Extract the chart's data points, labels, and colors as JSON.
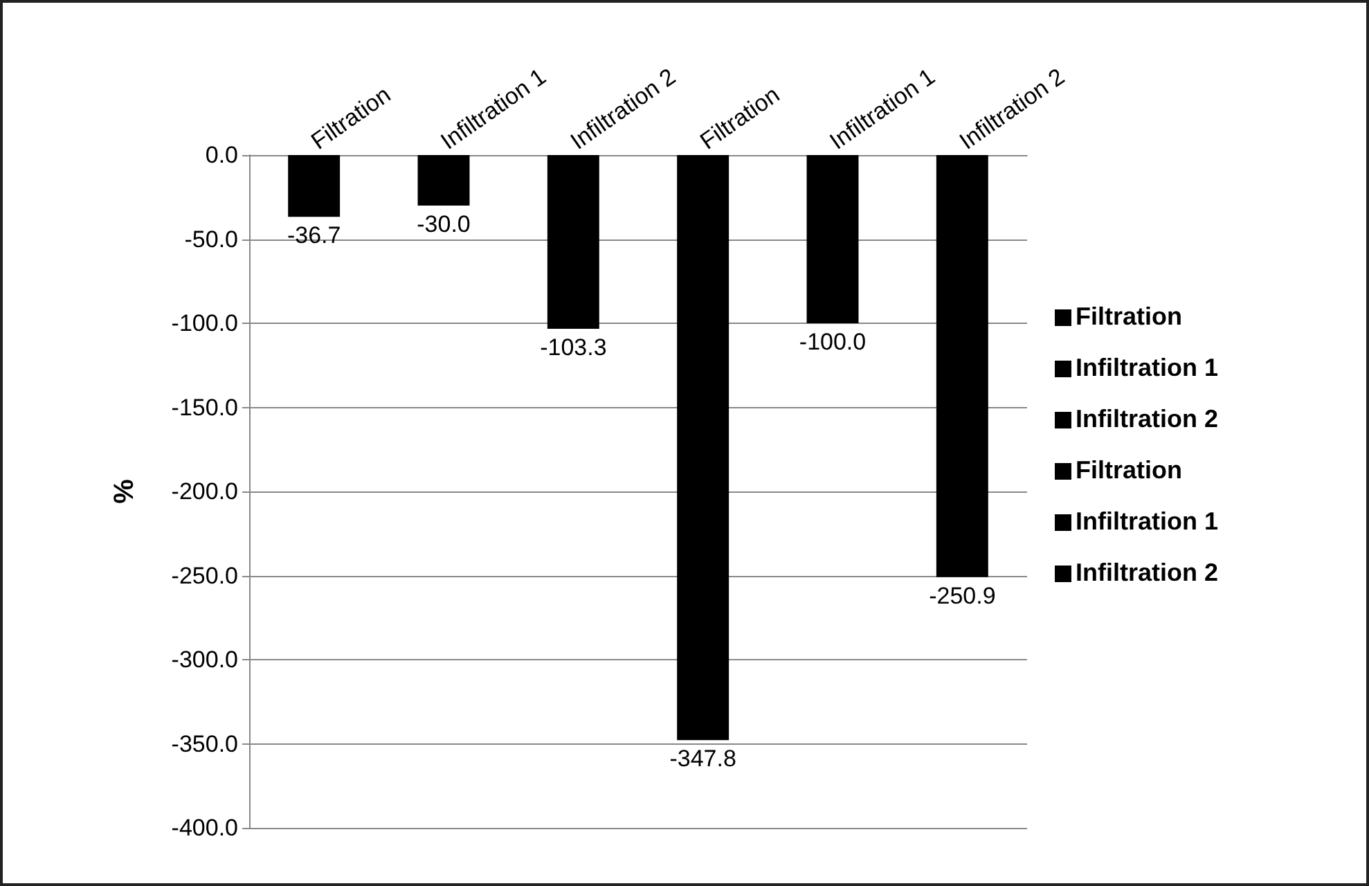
{
  "chart_data": {
    "type": "bar",
    "ylabel": "%",
    "categories": [
      "Filtration",
      "Infiltration 1",
      "Infiltration 2",
      "Filtration",
      "Infiltration 1",
      "Infiltration 2"
    ],
    "series": [
      {
        "name": "Filtration",
        "color": "#000000",
        "values": [
          -36.7,
          null,
          null,
          null,
          null,
          null
        ],
        "value_labels": [
          "-36.7",
          null,
          null,
          null,
          null,
          null
        ]
      },
      {
        "name": "Infiltration 1",
        "color": "#000000",
        "values": [
          null,
          -30.0,
          null,
          null,
          null,
          null
        ],
        "value_labels": [
          null,
          "-30.0",
          null,
          null,
          null,
          null
        ]
      },
      {
        "name": "Infiltration 2",
        "color": "#000000",
        "values": [
          null,
          null,
          -103.3,
          null,
          null,
          null
        ],
        "value_labels": [
          null,
          null,
          "-103.3",
          null,
          null,
          null
        ]
      },
      {
        "name": "Filtration",
        "color": "#000000",
        "values": [
          null,
          null,
          null,
          -347.8,
          null,
          null
        ],
        "value_labels": [
          null,
          null,
          null,
          "-347.8",
          null,
          null
        ]
      },
      {
        "name": "Infiltration 1",
        "color": "#000000",
        "values": [
          null,
          null,
          null,
          null,
          -100.0,
          null
        ],
        "value_labels": [
          null,
          null,
          null,
          null,
          "-100.0",
          null
        ]
      },
      {
        "name": "Infiltration 2",
        "color": "#000000",
        "values": [
          null,
          null,
          null,
          null,
          null,
          -250.9
        ],
        "value_labels": [
          null,
          null,
          null,
          null,
          null,
          "-250.9"
        ]
      }
    ],
    "ylim": [
      -400,
      0
    ],
    "yticks": [
      {
        "value": -400,
        "label": "-400.0"
      },
      {
        "value": -350,
        "label": "-350.0"
      },
      {
        "value": -300,
        "label": "-300.0"
      },
      {
        "value": -250,
        "label": "-250.0"
      },
      {
        "value": -200,
        "label": "-200.0"
      },
      {
        "value": -150,
        "label": "-150.0"
      },
      {
        "value": -100,
        "label": "-100.0"
      },
      {
        "value": -50,
        "label": "-50.0"
      },
      {
        "value": 0,
        "label": "0.0"
      }
    ],
    "grid": "y",
    "legend": "right"
  }
}
